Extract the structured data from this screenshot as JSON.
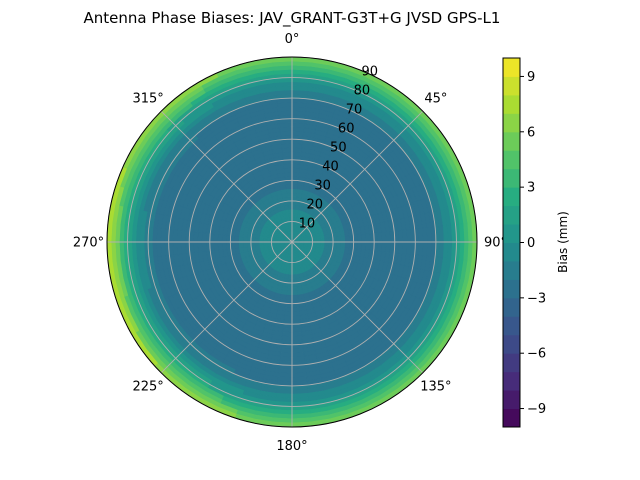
{
  "chart_data": {
    "type": "polar-contour",
    "title": "Antenna Phase Biases: JAV_GRANT-G3T+G JVSD GPS-L1",
    "angular_tick_labels": [
      "0°",
      "45°",
      "90°",
      "135°",
      "180°",
      "225°",
      "270°",
      "315°"
    ],
    "angular_ticks_deg": [
      0,
      45,
      90,
      135,
      180,
      225,
      270,
      315
    ],
    "radial_tick_labels": [
      "10",
      "20",
      "30",
      "40",
      "50",
      "60",
      "70",
      "80",
      "90"
    ],
    "radial_ticks": [
      10,
      20,
      30,
      40,
      50,
      60,
      70,
      80,
      90
    ],
    "radial_range": [
      0,
      90
    ],
    "grid": true,
    "colormap": "viridis",
    "colorbar": {
      "label": "Bias (mm)",
      "range": [
        -10,
        10
      ],
      "levels": 20,
      "tick_values": [
        -9,
        -6,
        -3,
        0,
        3,
        6,
        9
      ],
      "tick_labels": [
        "−9",
        "−6",
        "−3",
        "0",
        "3",
        "6",
        "9"
      ],
      "placement": "right"
    },
    "zenith_profile": {
      "zenith": [
        0,
        10,
        20,
        30,
        40,
        50,
        60,
        70,
        75,
        80,
        85,
        90
      ],
      "bias_mm": [
        0,
        -0.5,
        -1.5,
        -2.5,
        -3,
        -3,
        -2.8,
        -2,
        -1,
        1,
        3.5,
        6
      ]
    },
    "edge_azimuth_variation": {
      "azimuth": [
        0,
        45,
        90,
        135,
        180,
        225,
        270,
        315
      ],
      "extra_bias_at_horizon_mm": [
        0,
        0,
        0.5,
        0,
        0,
        1.5,
        2.5,
        1
      ]
    }
  }
}
